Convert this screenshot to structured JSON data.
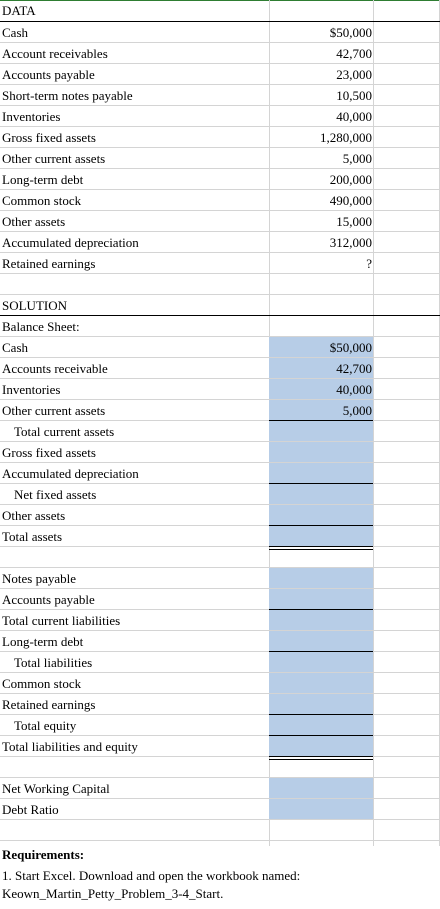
{
  "data_section": {
    "header": "DATA",
    "rows": [
      {
        "label": "Cash",
        "value": "$50,000"
      },
      {
        "label": "Account receivables",
        "value": "42,700"
      },
      {
        "label": "Accounts payable",
        "value": "23,000"
      },
      {
        "label": "Short-term notes payable",
        "value": "10,500"
      },
      {
        "label": "Inventories",
        "value": "40,000"
      },
      {
        "label": "Gross fixed assets",
        "value": "1,280,000"
      },
      {
        "label": "Other current assets",
        "value": "5,000"
      },
      {
        "label": "Long-term debt",
        "value": "200,000"
      },
      {
        "label": "Common stock",
        "value": "490,000"
      },
      {
        "label": "Other assets",
        "value": "15,000"
      },
      {
        "label": "Accumulated depreciation",
        "value": "312,000"
      },
      {
        "label": "Retained earnings",
        "value": "?"
      }
    ]
  },
  "solution_section": {
    "header": "SOLUTION",
    "subheader": "Balance Sheet:",
    "assets": [
      {
        "label": "Cash",
        "value": "$50,000"
      },
      {
        "label": "Accounts receivable",
        "value": "42,700"
      },
      {
        "label": "Inventories",
        "value": "40,000"
      },
      {
        "label": "Other current assets",
        "value": "5,000"
      },
      {
        "label": "Total current assets",
        "value": ""
      },
      {
        "label": "Gross fixed assets",
        "value": ""
      },
      {
        "label": "Accumulated depreciation",
        "value": ""
      },
      {
        "label": "Net fixed assets",
        "value": ""
      },
      {
        "label": "Other assets",
        "value": ""
      },
      {
        "label": "Total assets",
        "value": ""
      }
    ],
    "liabilities": [
      {
        "label": "Notes payable",
        "value": ""
      },
      {
        "label": "Accounts payable",
        "value": ""
      },
      {
        "label": "Total current liabilities",
        "value": ""
      },
      {
        "label": "Long-term debt",
        "value": ""
      },
      {
        "label": "Total liabilities",
        "value": ""
      },
      {
        "label": "Common stock",
        "value": ""
      },
      {
        "label": "Retained earnings",
        "value": ""
      },
      {
        "label": "Total equity",
        "value": ""
      },
      {
        "label": "Total liabilities and equity",
        "value": ""
      }
    ],
    "ratios": [
      {
        "label": "Net Working Capital",
        "value": ""
      },
      {
        "label": "Debt Ratio",
        "value": ""
      }
    ]
  },
  "requirements": {
    "title": "Requirements:",
    "line1": "1. Start Excel. Download and open the workbook named:",
    "line2": "Keown_Martin_Petty_Problem_3-4_Start."
  },
  "colors": {
    "input_fill": "#b7cde7",
    "gridline": "#d4d4d4",
    "top_border": "#2e7d32"
  }
}
